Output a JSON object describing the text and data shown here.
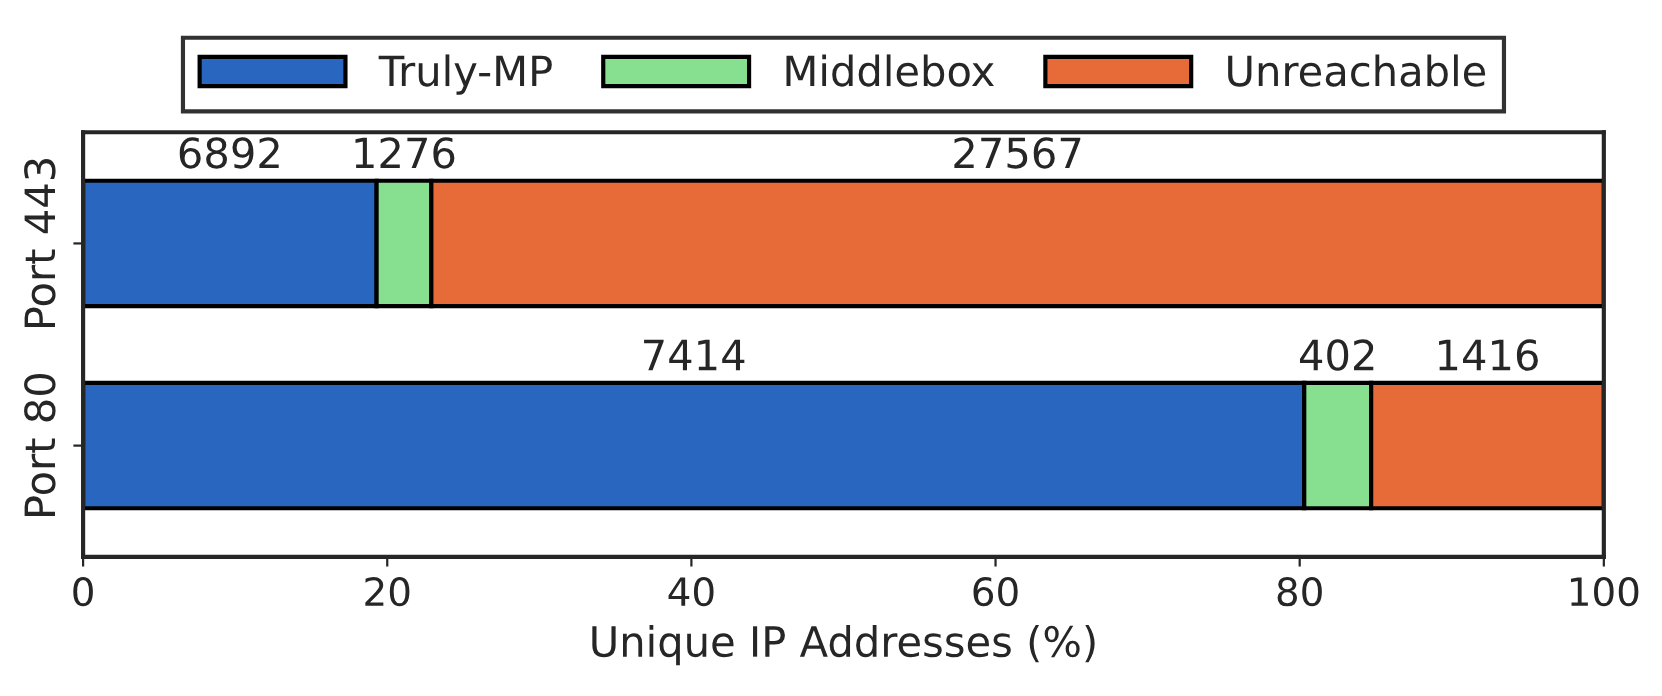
{
  "chart_data": {
    "type": "bar",
    "orientation": "horizontal",
    "stacked": true,
    "categories": [
      "Port 443",
      "Port 80"
    ],
    "series": [
      {
        "name": "Truly-MP",
        "color": "#2866c0",
        "values": [
          19.3,
          80.3
        ]
      },
      {
        "name": "Middlebox",
        "color": "#87e08f",
        "values": [
          3.6,
          4.4
        ]
      },
      {
        "name": "Unreachable",
        "color": "#e66b38",
        "values": [
          77.1,
          15.3
        ]
      }
    ],
    "annotations": [
      "6892",
      "1276",
      "27567",
      "7414",
      "402",
      "1416"
    ],
    "xlabel": "Unique IP Addresses (%)",
    "xlim": [
      0,
      100
    ],
    "xticks": [
      0,
      20,
      40,
      60,
      80,
      100
    ],
    "grid": false,
    "legend": "top"
  }
}
